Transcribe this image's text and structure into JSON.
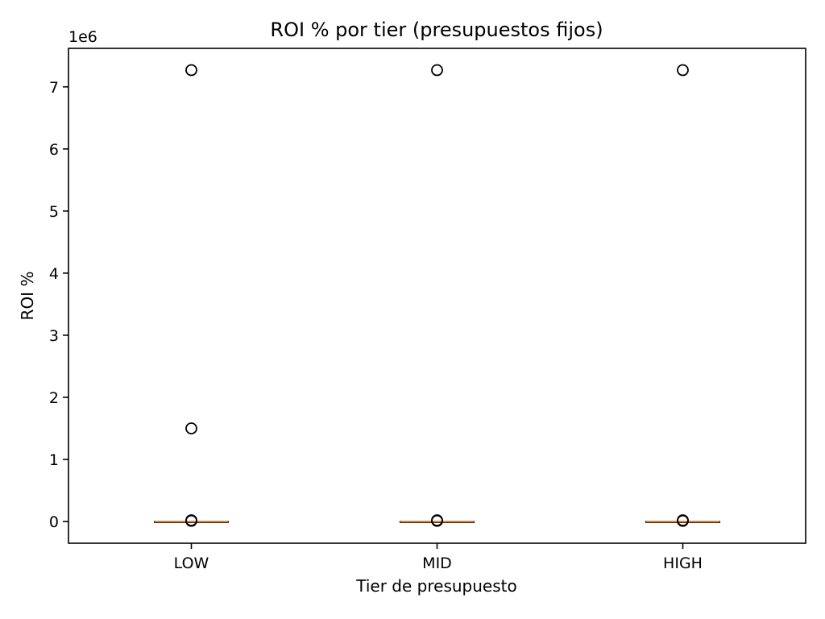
{
  "chart_data": {
    "type": "box",
    "title": "ROI % por tier (presupuestos fijos)",
    "xlabel": "Tier de presupuesto",
    "ylabel": "ROI %",
    "categories": [
      "LOW",
      "MID",
      "HIGH"
    ],
    "y_offset_label": "1e6",
    "y_scale_multiplier": 1000000,
    "yticks": [
      0,
      1,
      2,
      3,
      4,
      5,
      6,
      7
    ],
    "ylim": [
      -0.35,
      7.62
    ],
    "grid": false,
    "colors": {
      "median": "#ff7f0e",
      "box": "#000000",
      "flier": "#000000"
    },
    "boxes": [
      {
        "category": "LOW",
        "q1": 0,
        "median": 0,
        "q3": 0,
        "whisker_low": 0,
        "whisker_high": 0,
        "fliers": [
          0.02,
          0.01,
          7.27,
          1.5
        ]
      },
      {
        "category": "MID",
        "q1": 0,
        "median": 0,
        "q3": 0,
        "whisker_low": 0,
        "whisker_high": 0,
        "fliers": [
          0.02,
          0.01,
          7.27
        ]
      },
      {
        "category": "HIGH",
        "q1": 0,
        "median": 0,
        "q3": 0,
        "whisker_low": 0,
        "whisker_high": 0,
        "fliers": [
          0.02,
          0.01,
          7.27
        ]
      }
    ]
  }
}
